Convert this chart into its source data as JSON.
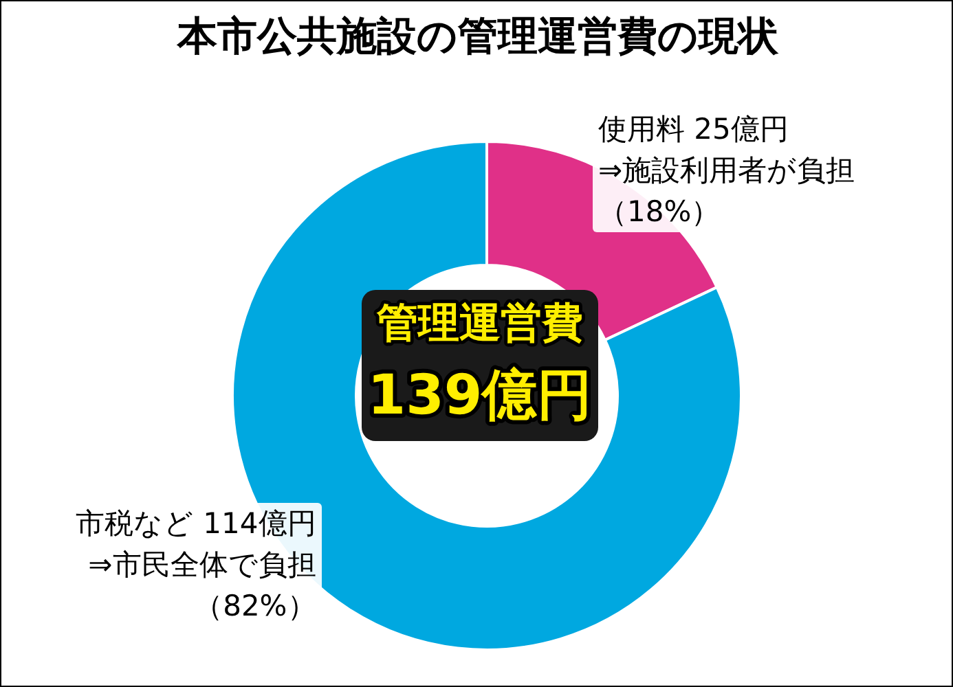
{
  "chart_data": {
    "type": "donut",
    "title": "本市公共施設の管理運営費の現状",
    "categories": [
      "使用料",
      "市税など"
    ],
    "values": [
      25,
      114
    ],
    "value_labels": [
      "25億円",
      "114億円"
    ],
    "colors": [
      "#e03088",
      "#00a8e0"
    ],
    "annotations": [
      "⇒施設利用者が負担",
      "（18%）",
      "⇒市民全体で負担",
      "（82%）",
      "管理運営費",
      "139億円"
    ],
    "legend": false
  }
}
